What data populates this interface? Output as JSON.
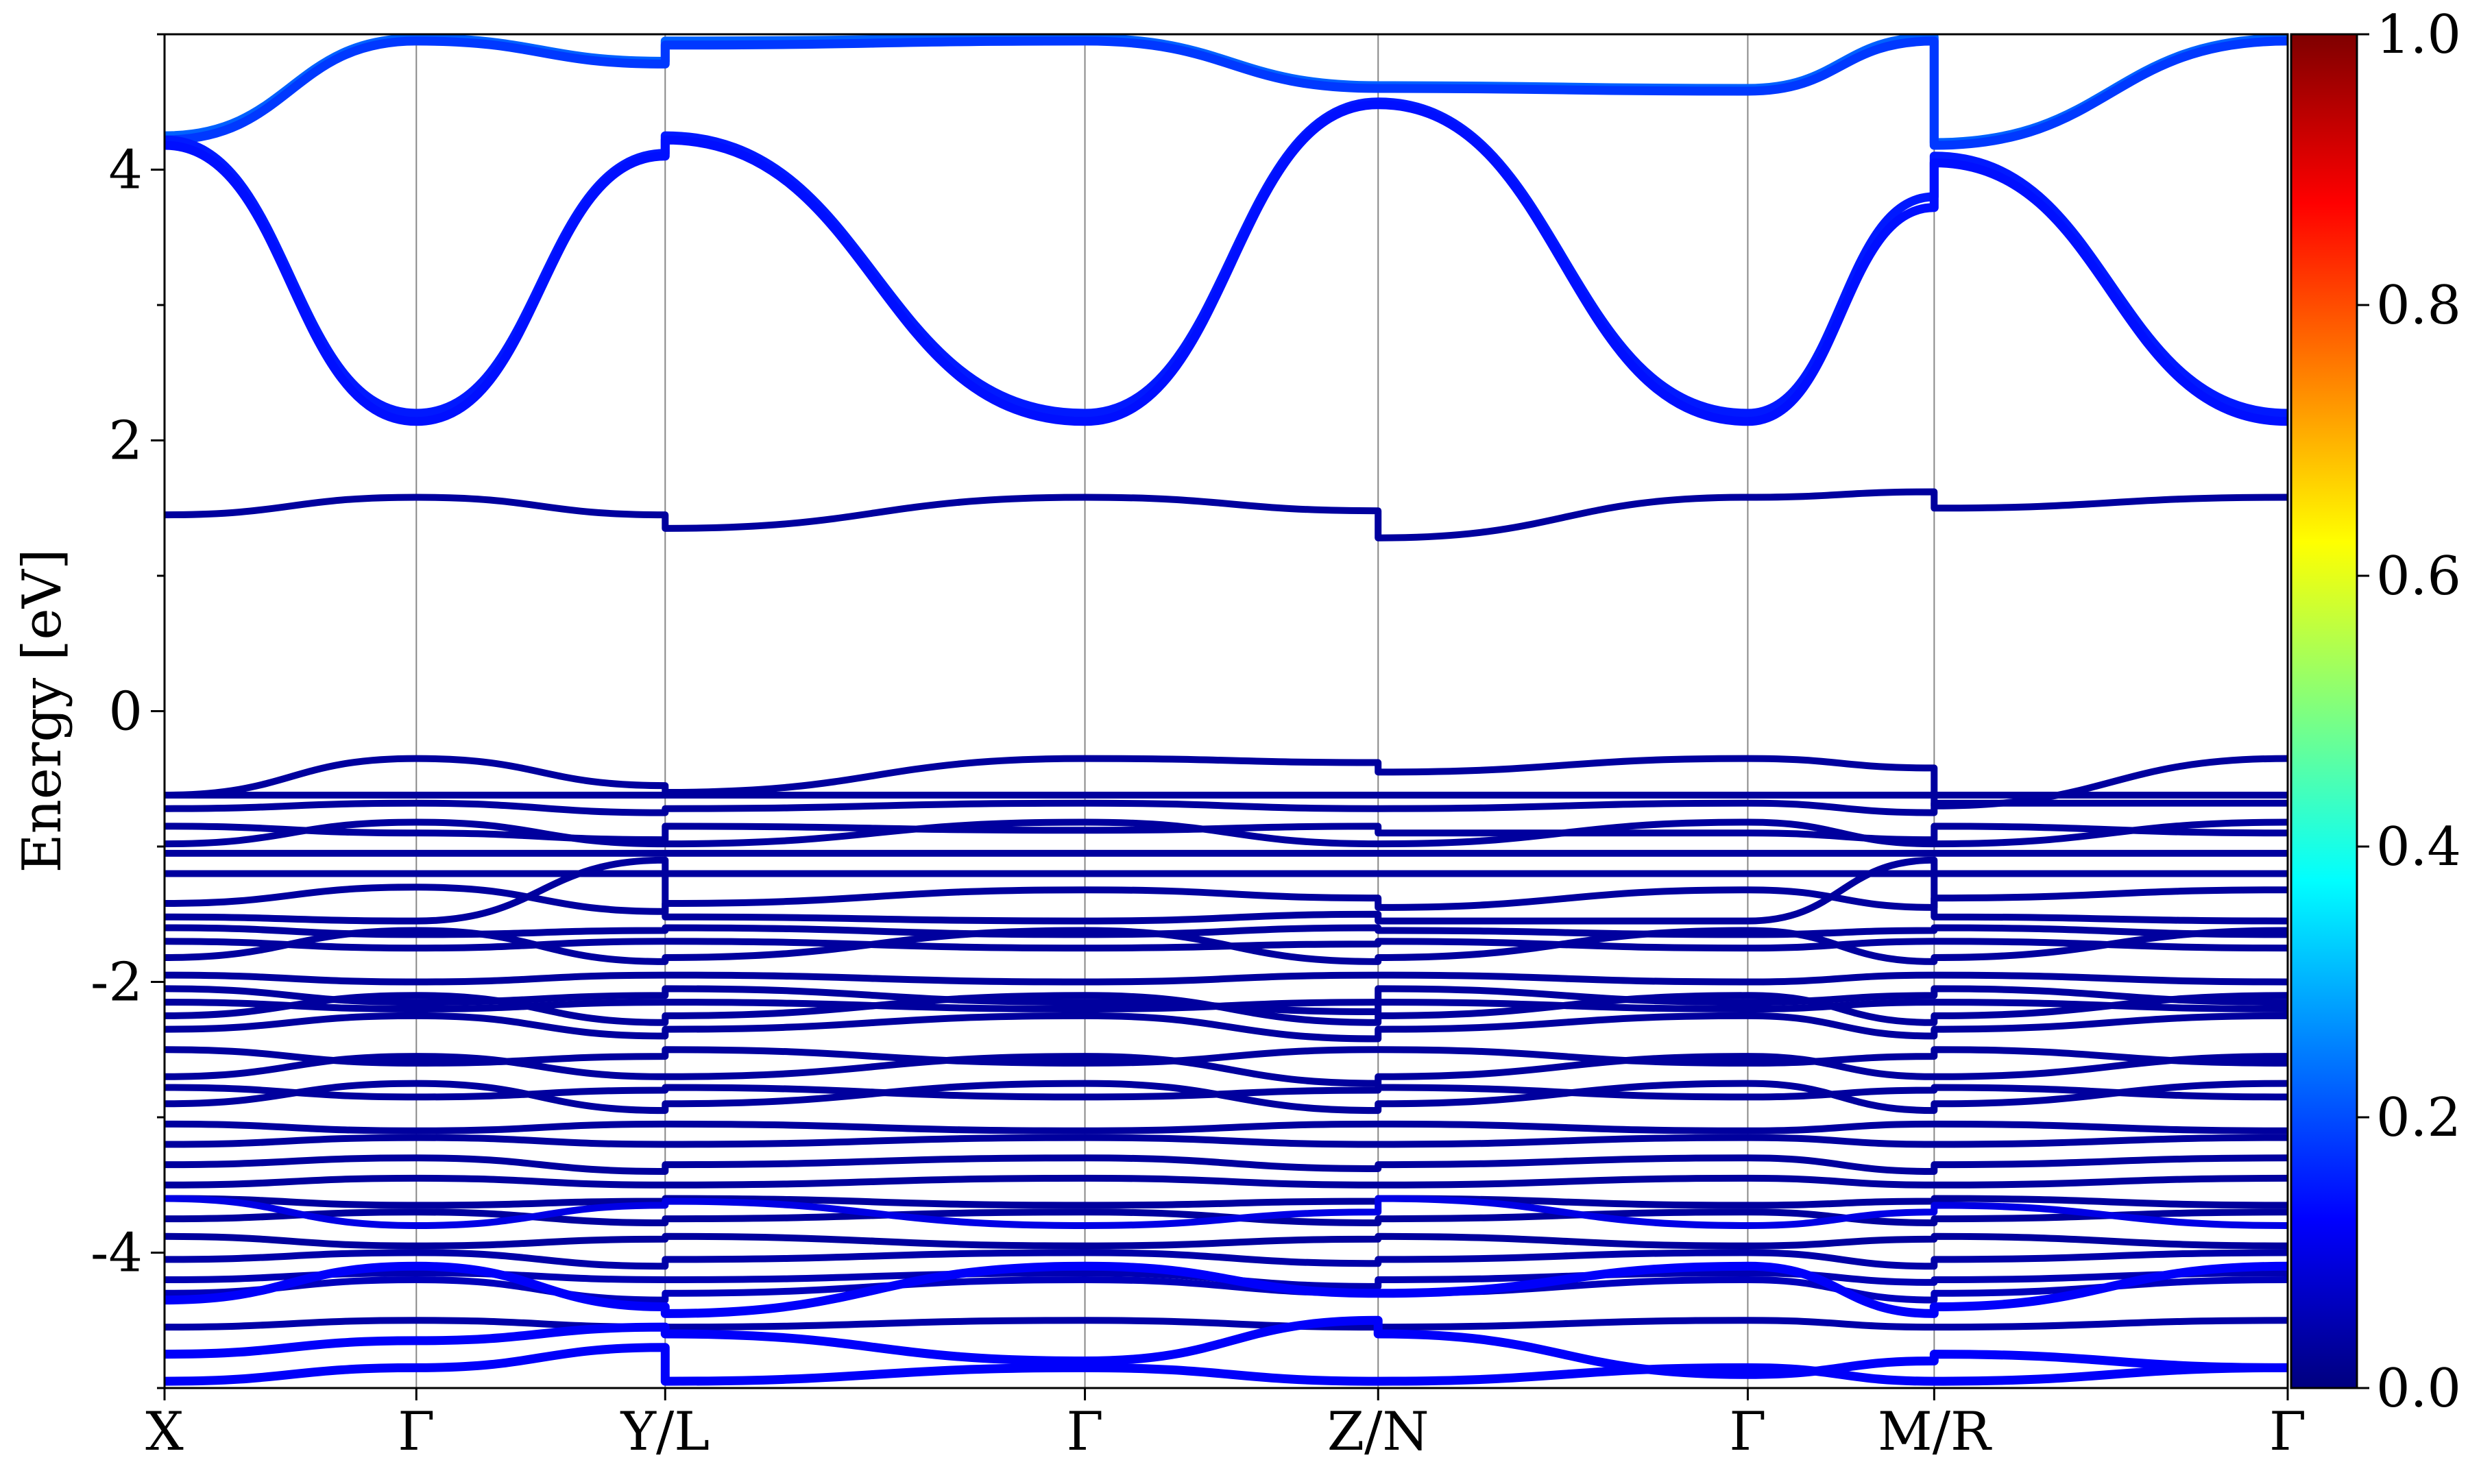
{
  "chart_data": {
    "type": "line",
    "title": "",
    "xlabel": "",
    "ylabel": "Energy [eV]",
    "ylim": [
      -5,
      5
    ],
    "y_ticks": [
      {
        "value": 4,
        "label": "4"
      },
      {
        "value": 2,
        "label": "2"
      },
      {
        "value": 0,
        "label": "0"
      },
      {
        "value": -2,
        "label": "-2"
      },
      {
        "value": -4,
        "label": "-4"
      }
    ],
    "y_minor_ticks": [
      5,
      3,
      1,
      -1,
      -3,
      -5
    ],
    "kpath": [
      {
        "label": "X",
        "k": 0.0
      },
      {
        "label": "Γ",
        "k": 0.1186
      },
      {
        "label": "Y/L",
        "k": 0.2358
      },
      {
        "label": "Γ",
        "k": 0.4335
      },
      {
        "label": "Z/N",
        "k": 0.5716
      },
      {
        "label": "Γ",
        "k": 0.7457
      },
      {
        "label": "M/R",
        "k": 0.8335
      },
      {
        "label": "Γ",
        "k": 1.0
      }
    ],
    "colorbar": {
      "colormap": "jet",
      "range": [
        0.0,
        1.0
      ],
      "ticks": [
        "1.0",
        "0.8",
        "0.6",
        "0.4",
        "0.2",
        "0.0"
      ],
      "colors": [
        "#00007f",
        "#0000ff",
        "#007fff",
        "#00ffff",
        "#7fff7f",
        "#ffff00",
        "#ff7f00",
        "#ff0000",
        "#7f0000"
      ]
    },
    "series": [
      {
        "weight": 0.22,
        "y": [
          4.25,
          4.97,
          4.8,
          4.95,
          4.97,
          4.62,
          4.6,
          4.98,
          4.2,
          4.97
        ]
      },
      {
        "weight": 0.18,
        "y": [
          4.22,
          4.95,
          4.78,
          4.92,
          4.95,
          4.6,
          4.58,
          4.95,
          4.18,
          4.95
        ]
      },
      {
        "weight": 0.15,
        "y": [
          4.22,
          2.2,
          4.12,
          4.25,
          2.2,
          4.5,
          4.5,
          2.2,
          3.8,
          4.1,
          2.2
        ]
      },
      {
        "weight": 0.14,
        "y": [
          4.18,
          2.14,
          4.1,
          4.22,
          2.14,
          4.48,
          4.48,
          2.14,
          3.72,
          4.05,
          2.14
        ]
      },
      {
        "weight": 0.03,
        "y": [
          1.45,
          1.58,
          1.45,
          1.35,
          1.58,
          1.48,
          1.28,
          1.58,
          1.62,
          1.5,
          1.58
        ]
      },
      {
        "weight": 0.03,
        "y": [
          -0.62,
          -0.35,
          -0.55,
          -0.6,
          -0.35,
          -0.38,
          -0.45,
          -0.35,
          -0.42,
          -0.7,
          -0.35
        ]
      },
      {
        "weight": 0.03,
        "y": [
          -0.62,
          -0.62,
          -0.62,
          -0.62,
          -0.62,
          -0.62,
          -0.62,
          -0.62,
          -0.62,
          -0.62,
          -0.62
        ]
      },
      {
        "weight": 0.03,
        "y": [
          -0.72,
          -0.68,
          -0.75,
          -0.72,
          -0.68,
          -0.72,
          -0.72,
          -0.68,
          -0.75,
          -0.68,
          -0.68
        ]
      },
      {
        "weight": 0.03,
        "y": [
          -0.85,
          -0.9,
          -0.95,
          -0.85,
          -0.88,
          -0.85,
          -0.9,
          -0.9,
          -0.95,
          -0.85,
          -0.9
        ]
      },
      {
        "weight": 0.03,
        "y": [
          -0.98,
          -0.82,
          -0.98,
          -0.98,
          -0.82,
          -0.98,
          -0.98,
          -0.82,
          -0.98,
          -0.98,
          -0.82
        ]
      },
      {
        "weight": 0.03,
        "y": [
          -1.05,
          -1.05,
          -1.05,
          -1.05,
          -1.05,
          -1.05,
          -1.05,
          -1.05,
          -1.05,
          -1.05,
          -1.05
        ]
      },
      {
        "weight": 0.03,
        "y": [
          -1.2,
          -1.2,
          -1.2,
          -1.2,
          -1.2,
          -1.2,
          -1.2,
          -1.2,
          -1.2,
          -1.2,
          -1.2
        ]
      },
      {
        "weight": 0.03,
        "y": [
          -1.42,
          -1.3,
          -1.48,
          -1.42,
          -1.32,
          -1.38,
          -1.45,
          -1.32,
          -1.45,
          -1.38,
          -1.32
        ]
      },
      {
        "weight": 0.03,
        "y": [
          -1.52,
          -1.55,
          -1.1,
          -1.52,
          -1.55,
          -1.5,
          -1.55,
          -1.55,
          -1.1,
          -1.52,
          -1.55
        ]
      },
      {
        "weight": 0.03,
        "y": [
          -1.6,
          -1.65,
          -1.62,
          -1.6,
          -1.65,
          -1.6,
          -1.62,
          -1.65,
          -1.62,
          -1.6,
          -1.65
        ]
      },
      {
        "weight": 0.03,
        "y": [
          -1.7,
          -1.75,
          -1.7,
          -1.7,
          -1.75,
          -1.72,
          -1.7,
          -1.75,
          -1.7,
          -1.7,
          -1.75
        ]
      },
      {
        "weight": 0.03,
        "y": [
          -1.82,
          -1.62,
          -1.85,
          -1.82,
          -1.62,
          -1.85,
          -1.82,
          -1.62,
          -1.85,
          -1.82,
          -1.62
        ]
      },
      {
        "weight": 0.03,
        "y": [
          -1.95,
          -2.0,
          -1.95,
          -1.95,
          -2.0,
          -1.95,
          -1.95,
          -2.0,
          -1.95,
          -1.95,
          -2.0
        ]
      },
      {
        "weight": 0.03,
        "y": [
          -2.05,
          -2.15,
          -2.1,
          -2.05,
          -2.15,
          -2.22,
          -2.05,
          -2.15,
          -2.1,
          -2.05,
          -2.15
        ]
      },
      {
        "weight": 0.03,
        "y": [
          -2.15,
          -2.2,
          -2.15,
          -2.15,
          -2.2,
          -2.15,
          -2.15,
          -2.2,
          -2.15,
          -2.15,
          -2.2
        ]
      },
      {
        "weight": 0.03,
        "y": [
          -2.25,
          -2.1,
          -2.3,
          -2.25,
          -2.1,
          -2.3,
          -2.25,
          -2.1,
          -2.3,
          -2.25,
          -2.1
        ]
      },
      {
        "weight": 0.03,
        "y": [
          -2.35,
          -2.25,
          -2.4,
          -2.35,
          -2.25,
          -2.42,
          -2.35,
          -2.25,
          -2.4,
          -2.35,
          -2.25
        ]
      },
      {
        "weight": 0.03,
        "y": [
          -2.5,
          -2.6,
          -2.55,
          -2.5,
          -2.6,
          -2.5,
          -2.5,
          -2.6,
          -2.55,
          -2.5,
          -2.6
        ]
      },
      {
        "weight": 0.03,
        "y": [
          -2.7,
          -2.55,
          -2.7,
          -2.7,
          -2.55,
          -2.75,
          -2.7,
          -2.55,
          -2.7,
          -2.7,
          -2.55
        ]
      },
      {
        "weight": 0.03,
        "y": [
          -2.78,
          -2.85,
          -2.8,
          -2.78,
          -2.85,
          -2.8,
          -2.78,
          -2.85,
          -2.8,
          -2.78,
          -2.85
        ]
      },
      {
        "weight": 0.03,
        "y": [
          -2.9,
          -2.75,
          -2.95,
          -2.9,
          -2.75,
          -2.95,
          -2.9,
          -2.75,
          -2.95,
          -2.9,
          -2.75
        ]
      },
      {
        "weight": 0.03,
        "y": [
          -3.05,
          -3.1,
          -3.05,
          -3.05,
          -3.1,
          -3.05,
          -3.05,
          -3.1,
          -3.05,
          -3.05,
          -3.1
        ]
      },
      {
        "weight": 0.03,
        "y": [
          -3.2,
          -3.15,
          -3.2,
          -3.2,
          -3.15,
          -3.2,
          -3.2,
          -3.15,
          -3.2,
          -3.2,
          -3.15
        ]
      },
      {
        "weight": 0.03,
        "y": [
          -3.35,
          -3.3,
          -3.4,
          -3.35,
          -3.3,
          -3.38,
          -3.35,
          -3.3,
          -3.4,
          -3.35,
          -3.3
        ]
      },
      {
        "weight": 0.03,
        "y": [
          -3.5,
          -3.45,
          -3.5,
          -3.5,
          -3.45,
          -3.5,
          -3.5,
          -3.45,
          -3.5,
          -3.5,
          -3.45
        ]
      },
      {
        "weight": 0.03,
        "y": [
          -3.6,
          -3.65,
          -3.62,
          -3.6,
          -3.65,
          -3.62,
          -3.6,
          -3.65,
          -3.62,
          -3.6,
          -3.65
        ]
      },
      {
        "weight": 0.03,
        "y": [
          -3.75,
          -3.7,
          -3.78,
          -3.75,
          -3.7,
          -3.78,
          -3.75,
          -3.7,
          -3.78,
          -3.75,
          -3.7
        ]
      },
      {
        "weight": 0.03,
        "y": [
          -3.88,
          -3.95,
          -3.9,
          -3.88,
          -3.95,
          -3.9,
          -3.88,
          -3.95,
          -3.9,
          -3.88,
          -3.95
        ]
      },
      {
        "weight": 0.04,
        "y": [
          -4.05,
          -4.0,
          -4.1,
          -4.05,
          -4.0,
          -4.08,
          -4.05,
          -4.0,
          -4.1,
          -4.05,
          -4.0
        ]
      },
      {
        "weight": 0.05,
        "y": [
          -4.2,
          -4.15,
          -4.2,
          -4.2,
          -4.15,
          -4.25,
          -4.2,
          -4.15,
          -4.22,
          -4.2,
          -4.15
        ]
      },
      {
        "weight": 0.06,
        "y": [
          -4.3,
          -4.2,
          -4.35,
          -4.3,
          -4.2,
          -4.3,
          -4.3,
          -4.2,
          -4.35,
          -4.3,
          -4.2
        ]
      },
      {
        "weight": 0.04,
        "y": [
          -4.55,
          -4.5,
          -4.55,
          -4.55,
          -4.5,
          -4.55,
          -4.55,
          -4.5,
          -4.55,
          -4.55,
          -4.5
        ]
      },
      {
        "weight": 0.1,
        "y": [
          -3.6,
          -3.8,
          -3.65,
          -3.62,
          -3.8,
          -3.7,
          -3.6,
          -3.8,
          -3.7,
          -3.65,
          -3.8
        ]
      },
      {
        "weight": 0.12,
        "y": [
          -4.35,
          -4.1,
          -4.4,
          -4.45,
          -4.1,
          -4.3,
          -4.3,
          -4.1,
          -4.45,
          -4.4,
          -4.1
        ]
      },
      {
        "weight": 0.12,
        "y": [
          -4.75,
          -4.65,
          -4.55,
          -4.6,
          -4.8,
          -4.5,
          -4.6,
          -4.9,
          -4.8,
          -4.75,
          -4.85
        ]
      },
      {
        "weight": 0.12,
        "y": [
          -4.95,
          -4.85,
          -4.7,
          -4.95,
          -4.85,
          -4.95,
          -4.95,
          -4.85,
          -4.95,
          -4.95,
          -4.85
        ]
      }
    ]
  }
}
